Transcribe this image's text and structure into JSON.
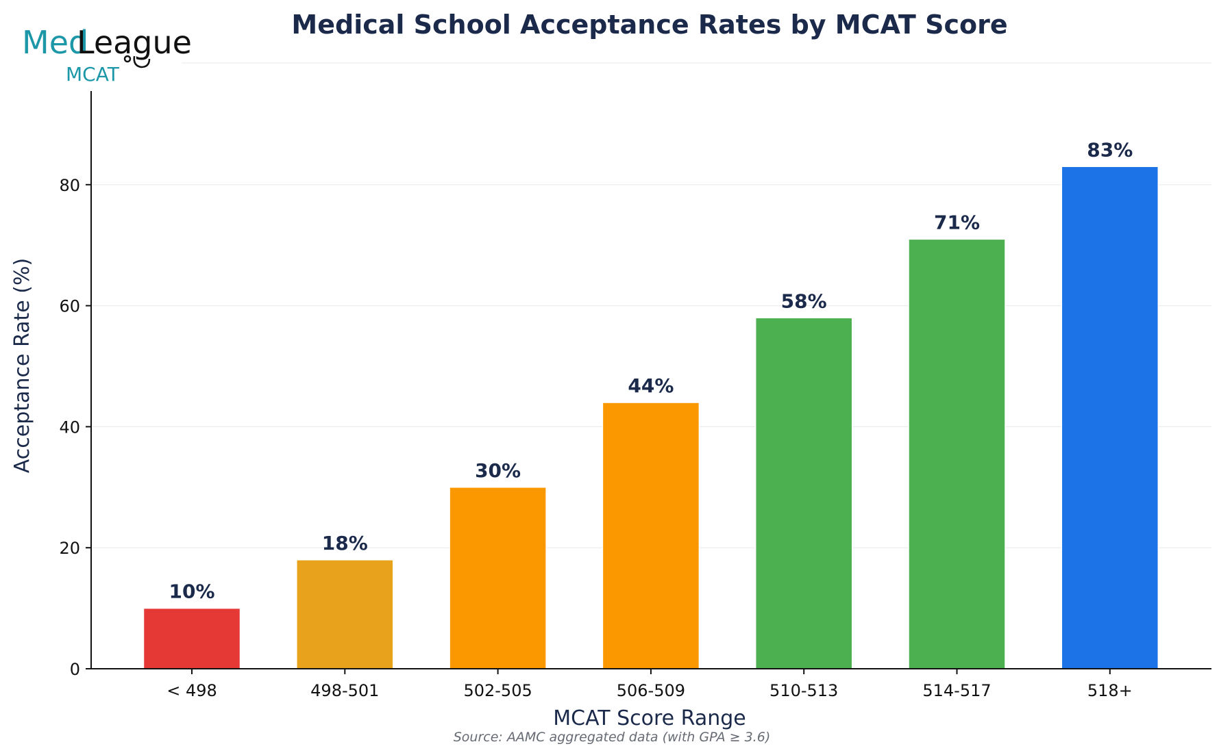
{
  "logo": {
    "part1": "Med",
    "part2": "League",
    "sub": "MCAT"
  },
  "colors": {
    "low": "#e53935",
    "lowmid": "#e9a21b",
    "mid": "#fb9800",
    "high": "#4caf50",
    "top": "#1c73e8",
    "text": "#1b2a4a"
  },
  "chart_data": {
    "type": "bar",
    "title": "Medical School Acceptance Rates by MCAT Score",
    "xlabel": "MCAT Score Range",
    "ylabel": "Acceptance Rate (%)",
    "source": "Source: AAMC aggregated data (with GPA ≥ 3.6)",
    "categories": [
      "< 498",
      "498-501",
      "502-505",
      "506-509",
      "510-513",
      "514-517",
      "518+"
    ],
    "values": [
      10,
      18,
      30,
      44,
      58,
      71,
      83
    ],
    "data_labels": [
      "10%",
      "18%",
      "30%",
      "44%",
      "58%",
      "71%",
      "83%"
    ],
    "bar_colors": [
      "#e53935",
      "#e9a21b",
      "#fb9800",
      "#fb9800",
      "#4caf50",
      "#4caf50",
      "#1c73e8"
    ],
    "ylim": [
      0,
      95
    ],
    "yticks": [
      0,
      20,
      40,
      60,
      80
    ],
    "grid": "horizontal",
    "legend": "none"
  }
}
